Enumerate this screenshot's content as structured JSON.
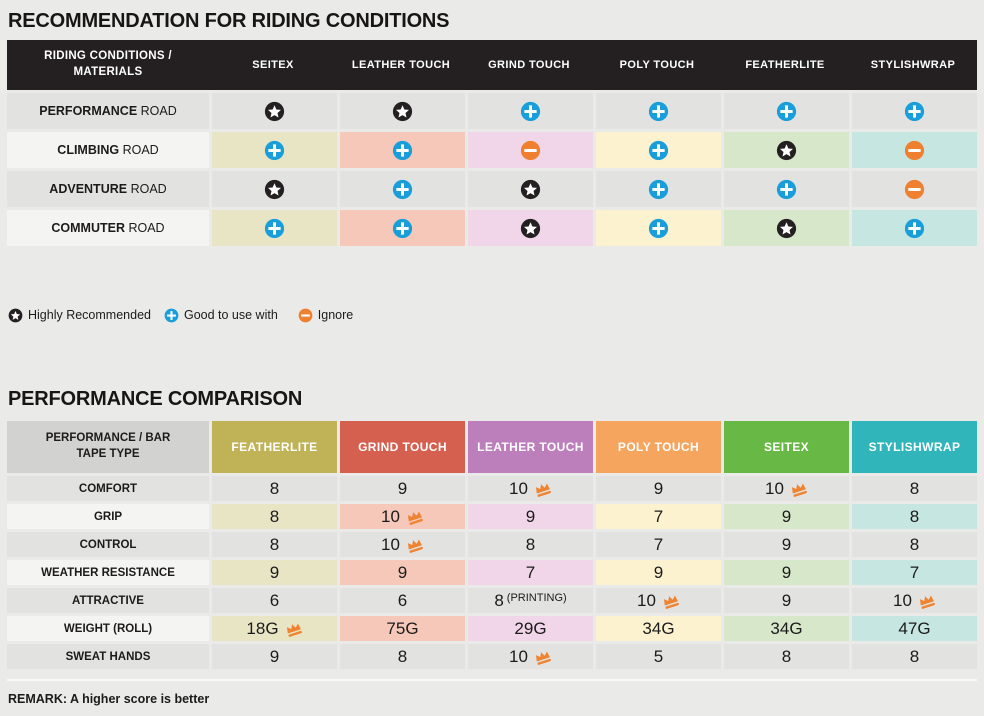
{
  "section1": {
    "title": "RECOMMENDATION FOR RIDING CONDITIONS",
    "table": {
      "header_label": "RIDING CONDITIONS / MATERIALS",
      "columns": [
        "SEITEX",
        "LEATHER TOUCH",
        "GRIND TOUCH",
        "POLY TOUCH",
        "FEATHERLITE",
        "STYLISHWRAP"
      ],
      "rows": [
        {
          "label_bold": "PERFORMANCE",
          "label_rest": "ROAD",
          "colored": false,
          "marks": [
            "star",
            "star",
            "plus",
            "plus",
            "plus",
            "plus"
          ]
        },
        {
          "label_bold": "CLIMBING",
          "label_rest": "ROAD",
          "colored": true,
          "marks": [
            "plus",
            "plus",
            "minus",
            "plus",
            "star",
            "minus"
          ]
        },
        {
          "label_bold": "ADVENTURE",
          "label_rest": "ROAD",
          "colored": false,
          "marks": [
            "star",
            "plus",
            "star",
            "plus",
            "plus",
            "minus"
          ]
        },
        {
          "label_bold": "COMMUTER",
          "label_rest": "ROAD",
          "colored": true,
          "marks": [
            "plus",
            "plus",
            "star",
            "plus",
            "star",
            "plus"
          ]
        }
      ]
    },
    "legend": [
      {
        "icon": "star",
        "label": "Highly Recommended"
      },
      {
        "icon": "plus",
        "label": "Good to use with"
      },
      {
        "icon": "minus",
        "label": "Ignore"
      }
    ]
  },
  "section2": {
    "title": "PERFORMANCE COMPARISON",
    "table": {
      "header_label": "PERFORMANCE / BAR TAPE TYPE",
      "columns": [
        {
          "name": "FEATHERLITE",
          "header_color": "#c0b257"
        },
        {
          "name": "GRIND TOUCH",
          "header_color": "#d6604f"
        },
        {
          "name": "LEATHER TOUCH",
          "header_color": "#bd7ebc"
        },
        {
          "name": "POLY TOUCH",
          "header_color": "#f6a55f"
        },
        {
          "name": "SEITEX",
          "header_color": "#68b845"
        },
        {
          "name": "STYLISHWRAP",
          "header_color": "#30b6ba"
        }
      ],
      "rows": [
        {
          "label": "COMFORT",
          "colored": false,
          "values": [
            {
              "v": "8"
            },
            {
              "v": "9"
            },
            {
              "v": "10",
              "crown": true
            },
            {
              "v": "9"
            },
            {
              "v": "10",
              "crown": true
            },
            {
              "v": "8"
            }
          ]
        },
        {
          "label": "GRIP",
          "colored": true,
          "values": [
            {
              "v": "8"
            },
            {
              "v": "10",
              "crown": true
            },
            {
              "v": "9"
            },
            {
              "v": "7"
            },
            {
              "v": "9"
            },
            {
              "v": "8"
            }
          ]
        },
        {
          "label": "CONTROL",
          "colored": false,
          "values": [
            {
              "v": "8"
            },
            {
              "v": "10",
              "crown": true
            },
            {
              "v": "8"
            },
            {
              "v": "7"
            },
            {
              "v": "9"
            },
            {
              "v": "8"
            }
          ]
        },
        {
          "label": "WEATHER RESISTANCE",
          "colored": true,
          "values": [
            {
              "v": "9"
            },
            {
              "v": "9"
            },
            {
              "v": "7"
            },
            {
              "v": "9"
            },
            {
              "v": "9"
            },
            {
              "v": "7"
            }
          ]
        },
        {
          "label": "ATTRACTIVE",
          "colored": false,
          "values": [
            {
              "v": "6"
            },
            {
              "v": "6"
            },
            {
              "v": "8",
              "note": "(PRINTING)"
            },
            {
              "v": "10",
              "crown": true
            },
            {
              "v": "9"
            },
            {
              "v": "10",
              "crown": true
            }
          ]
        },
        {
          "label": "WEIGHT (ROLL)",
          "colored": true,
          "values": [
            {
              "v": "18G",
              "crown": true
            },
            {
              "v": "75G"
            },
            {
              "v": "29G"
            },
            {
              "v": "34G"
            },
            {
              "v": "34G"
            },
            {
              "v": "47G"
            }
          ]
        },
        {
          "label": "SWEAT HANDS",
          "colored": false,
          "values": [
            {
              "v": "9"
            },
            {
              "v": "8"
            },
            {
              "v": "10",
              "crown": true
            },
            {
              "v": "5"
            },
            {
              "v": "8"
            },
            {
              "v": "8"
            }
          ]
        }
      ]
    },
    "remark": "REMARK: A higher score is better"
  },
  "colors": {
    "header_black": "#242021",
    "row_grey": "#e2e2e1",
    "label_light": "#f4f4f3",
    "column_pastels": [
      "#e8e5c5",
      "#f5c8ba",
      "#f0d6e8",
      "#fdf2d0",
      "#d7e8ca",
      "#c6e6e1"
    ],
    "icon_star": "#242021",
    "icon_plus": "#199ed9",
    "icon_minus": "#ef8030",
    "crown": "#ef8330"
  },
  "chart_data": [
    {
      "type": "table",
      "title": "RECOMMENDATION FOR RIDING CONDITIONS",
      "row_header": "RIDING CONDITIONS / MATERIALS",
      "columns": [
        "SEITEX",
        "LEATHER TOUCH",
        "GRIND TOUCH",
        "POLY TOUCH",
        "FEATHERLITE",
        "STYLISHWRAP"
      ],
      "rows": [
        [
          "PERFORMANCE ROAD",
          "star",
          "star",
          "plus",
          "plus",
          "plus",
          "plus"
        ],
        [
          "CLIMBING ROAD",
          "plus",
          "plus",
          "minus",
          "plus",
          "star",
          "minus"
        ],
        [
          "ADVENTURE ROAD",
          "star",
          "plus",
          "star",
          "plus",
          "plus",
          "minus"
        ],
        [
          "COMMUTER ROAD",
          "plus",
          "plus",
          "star",
          "plus",
          "star",
          "plus"
        ]
      ],
      "legend": {
        "star": "Highly Recommended",
        "plus": "Good to use with",
        "minus": "Ignore"
      }
    },
    {
      "type": "table",
      "title": "PERFORMANCE COMPARISON",
      "row_header": "PERFORMANCE / BAR TAPE TYPE",
      "columns": [
        "FEATHERLITE",
        "GRIND TOUCH",
        "LEATHER TOUCH",
        "POLY TOUCH",
        "SEITEX",
        "STYLISHWRAP"
      ],
      "rows": [
        [
          "COMFORT",
          "8",
          "9",
          "10 (crown)",
          "9",
          "10 (crown)",
          "8"
        ],
        [
          "GRIP",
          "8",
          "10 (crown)",
          "9",
          "7",
          "9",
          "8"
        ],
        [
          "CONTROL",
          "8",
          "10 (crown)",
          "8",
          "7",
          "9",
          "8"
        ],
        [
          "WEATHER RESISTANCE",
          "9",
          "9",
          "7",
          "9",
          "9",
          "7"
        ],
        [
          "ATTRACTIVE",
          "6",
          "6",
          "8 (PRINTING)",
          "10 (crown)",
          "9",
          "10 (crown)"
        ],
        [
          "WEIGHT (ROLL)",
          "18G (crown)",
          "75G",
          "29G",
          "34G",
          "34G",
          "47G"
        ],
        [
          "SWEAT HANDS",
          "9",
          "8",
          "10 (crown)",
          "5",
          "8",
          "8"
        ]
      ],
      "note": "crown = best score in row; REMARK: A higher score is better"
    }
  ]
}
